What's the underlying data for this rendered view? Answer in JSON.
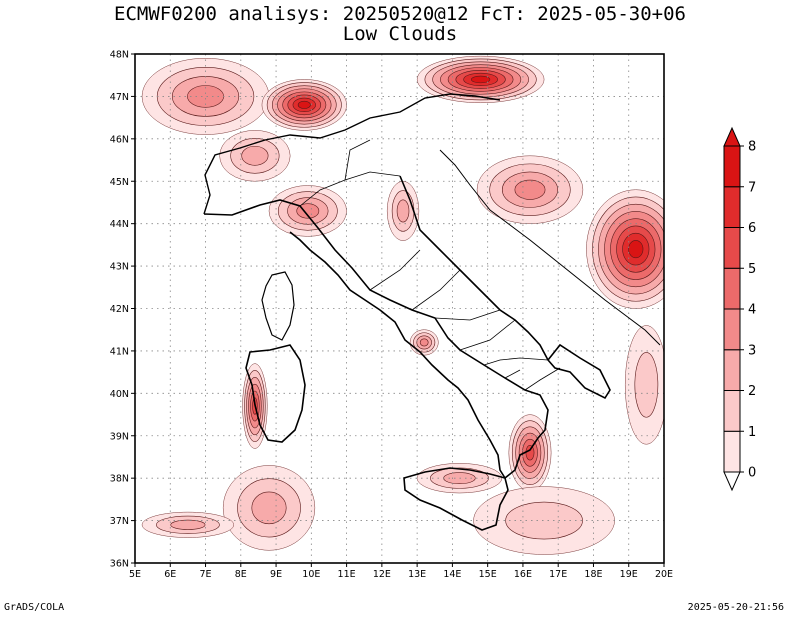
{
  "title": {
    "line1": "ECMWF0200 analisys: 20250520@12 FcT: 2025-05-30+06",
    "line2": "Low Clouds"
  },
  "footer": {
    "left": "GrADS/COLA",
    "right": "2025-05-20-21:56"
  },
  "map": {
    "lon_range": [
      5,
      20
    ],
    "lat_range": [
      36,
      48
    ],
    "x_tick_labels": [
      "5E",
      "6E",
      "7E",
      "8E",
      "9E",
      "10E",
      "11E",
      "12E",
      "13E",
      "14E",
      "15E",
      "16E",
      "17E",
      "18E",
      "19E",
      "20E"
    ],
    "y_tick_labels": [
      "36N",
      "37N",
      "38N",
      "39N",
      "40N",
      "41N",
      "42N",
      "43N",
      "44N",
      "45N",
      "46N",
      "47N",
      "48N"
    ],
    "gridlines": true,
    "gridline_style": "dotted"
  },
  "colorbar": {
    "levels": [
      "0",
      "1",
      "2",
      "3",
      "4",
      "5",
      "6",
      "7",
      "8"
    ],
    "colors": [
      "#fee4e4",
      "#fbc9c9",
      "#f7aaaa",
      "#f28a8a",
      "#ec6a6a",
      "#e64a4a",
      "#e02c2c",
      "#da1414"
    ]
  },
  "cloud_patches": [
    {
      "name": "alps-west-cloud",
      "lon": 7.0,
      "lat": 47.0,
      "rx": 1.8,
      "ry": 0.9,
      "level": 3
    },
    {
      "name": "alps-central-cloud",
      "lon": 9.8,
      "lat": 46.8,
      "rx": 1.2,
      "ry": 0.6,
      "level": 7
    },
    {
      "name": "alps-east-cloud",
      "lon": 14.8,
      "lat": 47.4,
      "rx": 1.8,
      "ry": 0.55,
      "level": 7
    },
    {
      "name": "balkans-south-cloud",
      "lon": 19.2,
      "lat": 43.4,
      "rx": 1.4,
      "ry": 1.4,
      "level": 7
    },
    {
      "name": "croatia-coast-cloud",
      "lon": 16.2,
      "lat": 44.8,
      "rx": 1.5,
      "ry": 0.8,
      "level": 3
    },
    {
      "name": "piedmont-cloud",
      "lon": 8.4,
      "lat": 45.6,
      "rx": 1.0,
      "ry": 0.6,
      "level": 2
    },
    {
      "name": "liguria-cloud",
      "lon": 9.9,
      "lat": 44.3,
      "rx": 1.1,
      "ry": 0.6,
      "level": 3
    },
    {
      "name": "sardinia-west-cloud",
      "lon": 8.4,
      "lat": 39.7,
      "rx": 0.35,
      "ry": 1.0,
      "level": 5
    },
    {
      "name": "sicily-strait-cloud",
      "lon": 8.8,
      "lat": 37.3,
      "rx": 1.3,
      "ry": 1.0,
      "level": 2
    },
    {
      "name": "calabria-cloud",
      "lon": 16.2,
      "lat": 38.6,
      "rx": 0.6,
      "ry": 0.9,
      "level": 5
    },
    {
      "name": "sicily-north-cloud",
      "lon": 14.2,
      "lat": 38.0,
      "rx": 1.2,
      "ry": 0.35,
      "level": 2
    },
    {
      "name": "tunisia-coast-cloud",
      "lon": 6.5,
      "lat": 36.9,
      "rx": 1.3,
      "ry": 0.3,
      "level": 2
    },
    {
      "name": "gargano-cloud",
      "lon": 13.2,
      "lat": 41.2,
      "rx": 0.4,
      "ry": 0.3,
      "level": 3
    },
    {
      "name": "adriatic-west-cloud",
      "lon": 12.6,
      "lat": 44.3,
      "rx": 0.45,
      "ry": 0.7,
      "level": 2
    },
    {
      "name": "albania-coast-cloud",
      "lon": 19.5,
      "lat": 40.2,
      "rx": 0.6,
      "ry": 1.4,
      "level": 1
    },
    {
      "name": "ionian-cloud",
      "lon": 16.6,
      "lat": 37.0,
      "rx": 2.0,
      "ry": 0.8,
      "level": 1
    }
  ]
}
